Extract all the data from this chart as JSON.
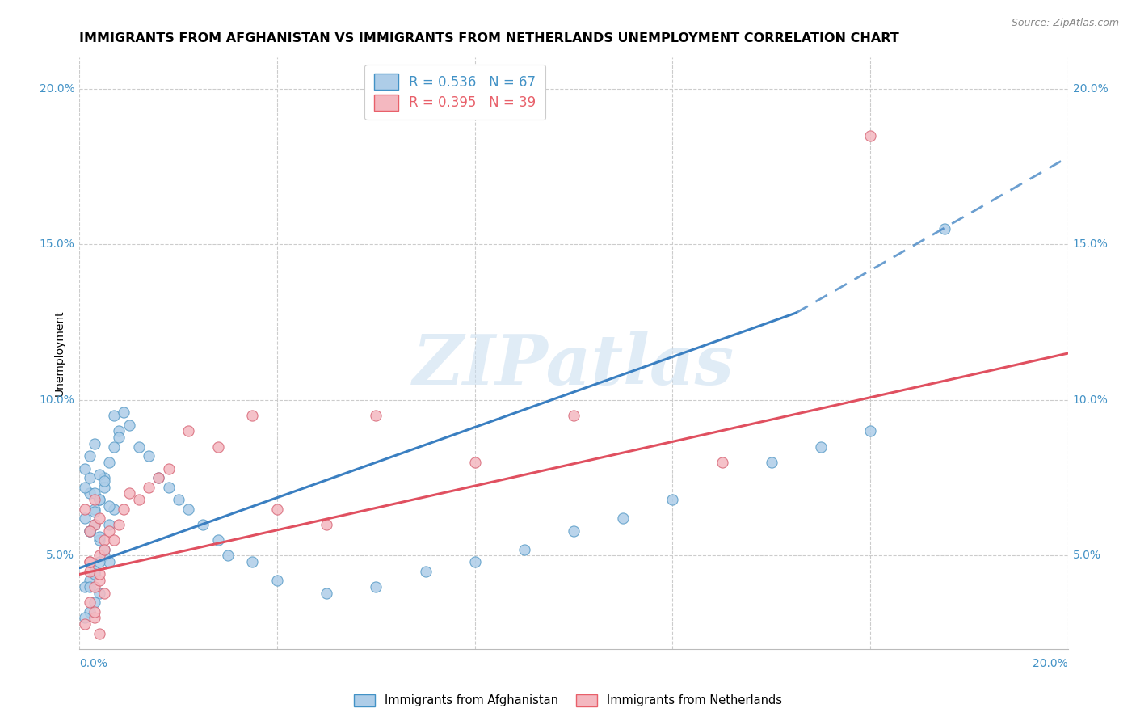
{
  "title": "IMMIGRANTS FROM AFGHANISTAN VS IMMIGRANTS FROM NETHERLANDS UNEMPLOYMENT CORRELATION CHART",
  "source": "Source: ZipAtlas.com",
  "ylabel": "Unemployment",
  "xmin": 0.0,
  "xmax": 0.2,
  "ymin": 0.02,
  "ymax": 0.21,
  "yticks": [
    0.05,
    0.1,
    0.15,
    0.2
  ],
  "ytick_labels": [
    "5.0%",
    "10.0%",
    "15.0%",
    "20.0%"
  ],
  "xtick_labels": [
    "0.0%",
    "20.0%"
  ],
  "watermark": "ZIPatlas",
  "legend_r1": "R = 0.536",
  "legend_n1": "N = 67",
  "legend_r2": "R = 0.395",
  "legend_n2": "N = 39",
  "legend_color1": "#4292c6",
  "legend_color2": "#e8606a",
  "legend_face1": "#aecde8",
  "legend_face2": "#f4b8c0",
  "scatter_afghanistan": {
    "color": "#aecde8",
    "edge_color": "#5a9dc8",
    "x": [
      0.005,
      0.004,
      0.003,
      0.002,
      0.001,
      0.006,
      0.007,
      0.008,
      0.003,
      0.002,
      0.001,
      0.004,
      0.005,
      0.006,
      0.003,
      0.002,
      0.001,
      0.004,
      0.003,
      0.002,
      0.001,
      0.005,
      0.004,
      0.003,
      0.002,
      0.006,
      0.007,
      0.003,
      0.002,
      0.004,
      0.005,
      0.001,
      0.002,
      0.003,
      0.004,
      0.005,
      0.006,
      0.003,
      0.002,
      0.004,
      0.007,
      0.008,
      0.009,
      0.01,
      0.012,
      0.014,
      0.016,
      0.018,
      0.02,
      0.022,
      0.025,
      0.028,
      0.03,
      0.035,
      0.04,
      0.05,
      0.06,
      0.07,
      0.08,
      0.09,
      0.1,
      0.11,
      0.12,
      0.14,
      0.15,
      0.16,
      0.175
    ],
    "y": [
      0.075,
      0.068,
      0.065,
      0.07,
      0.072,
      0.08,
      0.085,
      0.09,
      0.06,
      0.058,
      0.062,
      0.055,
      0.05,
      0.048,
      0.045,
      0.042,
      0.04,
      0.038,
      0.035,
      0.032,
      0.03,
      0.052,
      0.048,
      0.044,
      0.04,
      0.06,
      0.065,
      0.07,
      0.075,
      0.068,
      0.072,
      0.078,
      0.082,
      0.086,
      0.076,
      0.074,
      0.066,
      0.064,
      0.058,
      0.056,
      0.095,
      0.088,
      0.096,
      0.092,
      0.085,
      0.082,
      0.075,
      0.072,
      0.068,
      0.065,
      0.06,
      0.055,
      0.05,
      0.048,
      0.042,
      0.038,
      0.04,
      0.045,
      0.048,
      0.052,
      0.058,
      0.062,
      0.068,
      0.08,
      0.085,
      0.09,
      0.155
    ]
  },
  "scatter_netherlands": {
    "color": "#f4b8c0",
    "edge_color": "#d86878",
    "x": [
      0.002,
      0.003,
      0.004,
      0.005,
      0.002,
      0.003,
      0.001,
      0.004,
      0.003,
      0.002,
      0.005,
      0.004,
      0.003,
      0.002,
      0.001,
      0.004,
      0.003,
      0.005,
      0.002,
      0.004,
      0.006,
      0.007,
      0.008,
      0.009,
      0.01,
      0.012,
      0.014,
      0.016,
      0.018,
      0.022,
      0.028,
      0.035,
      0.04,
      0.05,
      0.06,
      0.08,
      0.1,
      0.13,
      0.16
    ],
    "y": [
      0.045,
      0.04,
      0.042,
      0.038,
      0.035,
      0.03,
      0.028,
      0.025,
      0.032,
      0.048,
      0.055,
      0.05,
      0.06,
      0.058,
      0.065,
      0.062,
      0.068,
      0.052,
      0.048,
      0.044,
      0.058,
      0.055,
      0.06,
      0.065,
      0.07,
      0.068,
      0.072,
      0.075,
      0.078,
      0.09,
      0.085,
      0.095,
      0.065,
      0.06,
      0.095,
      0.08,
      0.095,
      0.08,
      0.185
    ]
  },
  "trend_afghanistan": {
    "color": "#3a7fc1",
    "x_start": 0.0,
    "x_end": 0.145,
    "y_start": 0.046,
    "y_end": 0.128,
    "dashed_x_start": 0.145,
    "dashed_x_end": 0.2,
    "dashed_y_start": 0.128,
    "dashed_y_end": 0.178
  },
  "trend_netherlands": {
    "color": "#e05060",
    "x_start": 0.0,
    "x_end": 0.2,
    "y_start": 0.044,
    "y_end": 0.115
  },
  "title_fontsize": 11.5,
  "axis_label_fontsize": 10,
  "tick_fontsize": 10,
  "axis_color": "#4292c6",
  "grid_color": "#cccccc",
  "watermark_color": "#c8ddf0",
  "watermark_alpha": 0.55,
  "watermark_fontsize": 62
}
